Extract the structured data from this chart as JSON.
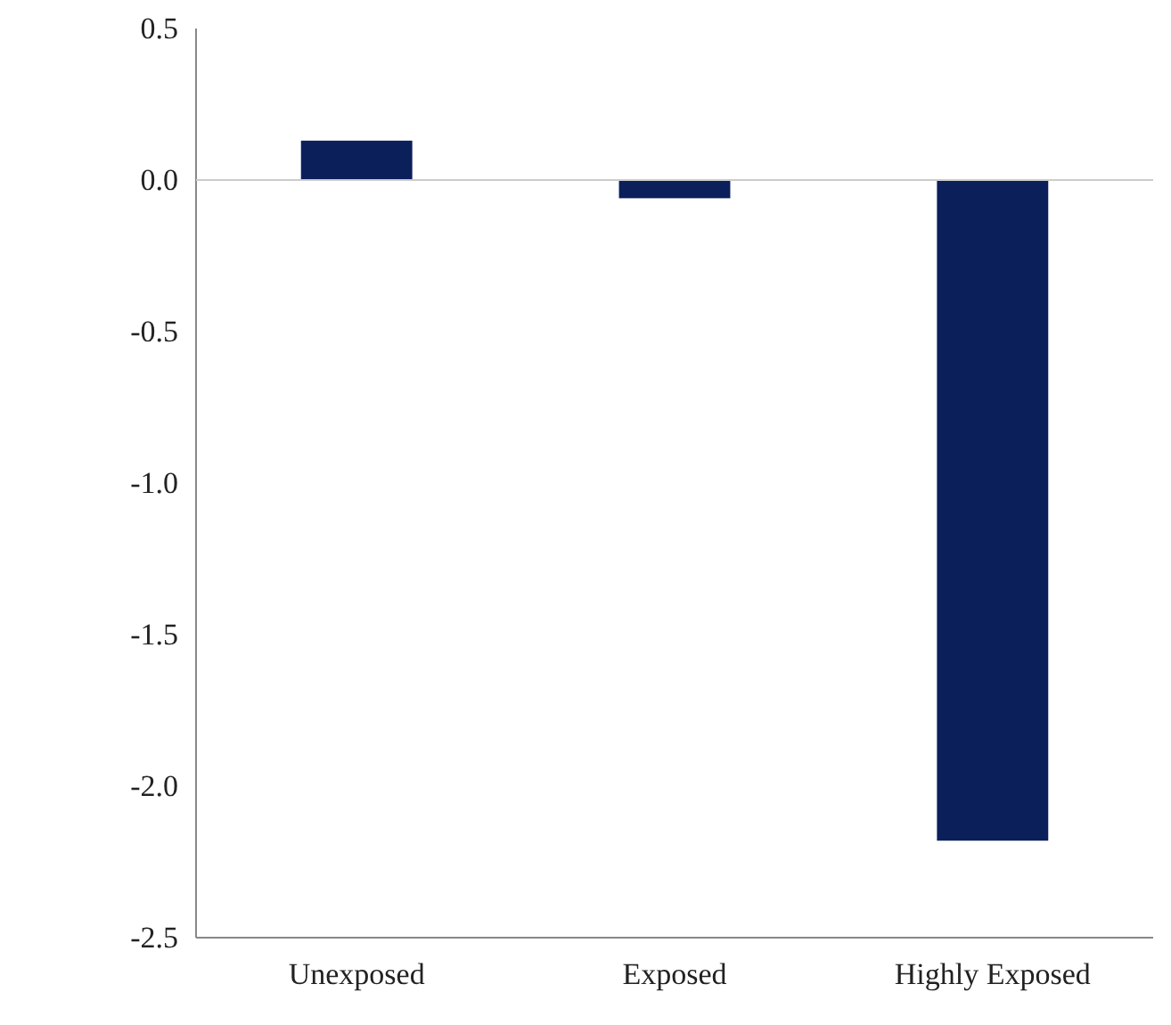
{
  "chart_data": {
    "type": "bar",
    "categories": [
      "Unexposed",
      "Exposed",
      "Highly Exposed"
    ],
    "values": [
      0.13,
      -0.06,
      -2.18
    ],
    "ylim": [
      -2.5,
      0.5
    ],
    "yticks": [
      {
        "value": 0.5,
        "label": "0.5"
      },
      {
        "value": 0,
        "label": "0.0"
      },
      {
        "value": -0.5,
        "label": "-0.5"
      },
      {
        "value": -1,
        "label": "-1.0"
      },
      {
        "value": -1.5,
        "label": "-1.5"
      },
      {
        "value": -2,
        "label": "-2.0"
      },
      {
        "value": -2.5,
        "label": "-2.5"
      }
    ],
    "color": "#0b1f5b"
  }
}
